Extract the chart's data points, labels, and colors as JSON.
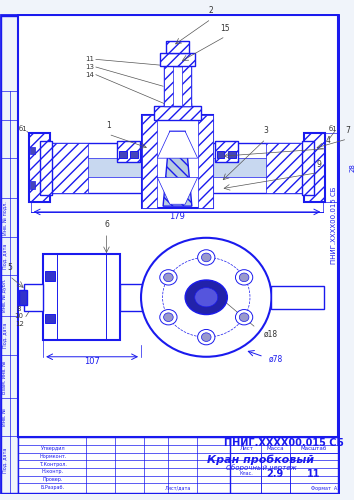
{
  "bg_color": "#f0f4fa",
  "white": "#ffffff",
  "lc": "#1a1aee",
  "oc": "#e08000",
  "gc": "#808080",
  "hatch_fc": "#dde8ee",
  "title_doc": "ПНИГ.ХХХХ00.015 СБ",
  "title_name": "Кран пробковый",
  "title_sub": "Сборочный чертеж",
  "sheet_num": "2.9",
  "sheet_total": "11",
  "dim_179": "179",
  "dim_107": "107",
  "dim_phi78": "ø78",
  "dim_phi18": "ø18",
  "dim_28": "28"
}
